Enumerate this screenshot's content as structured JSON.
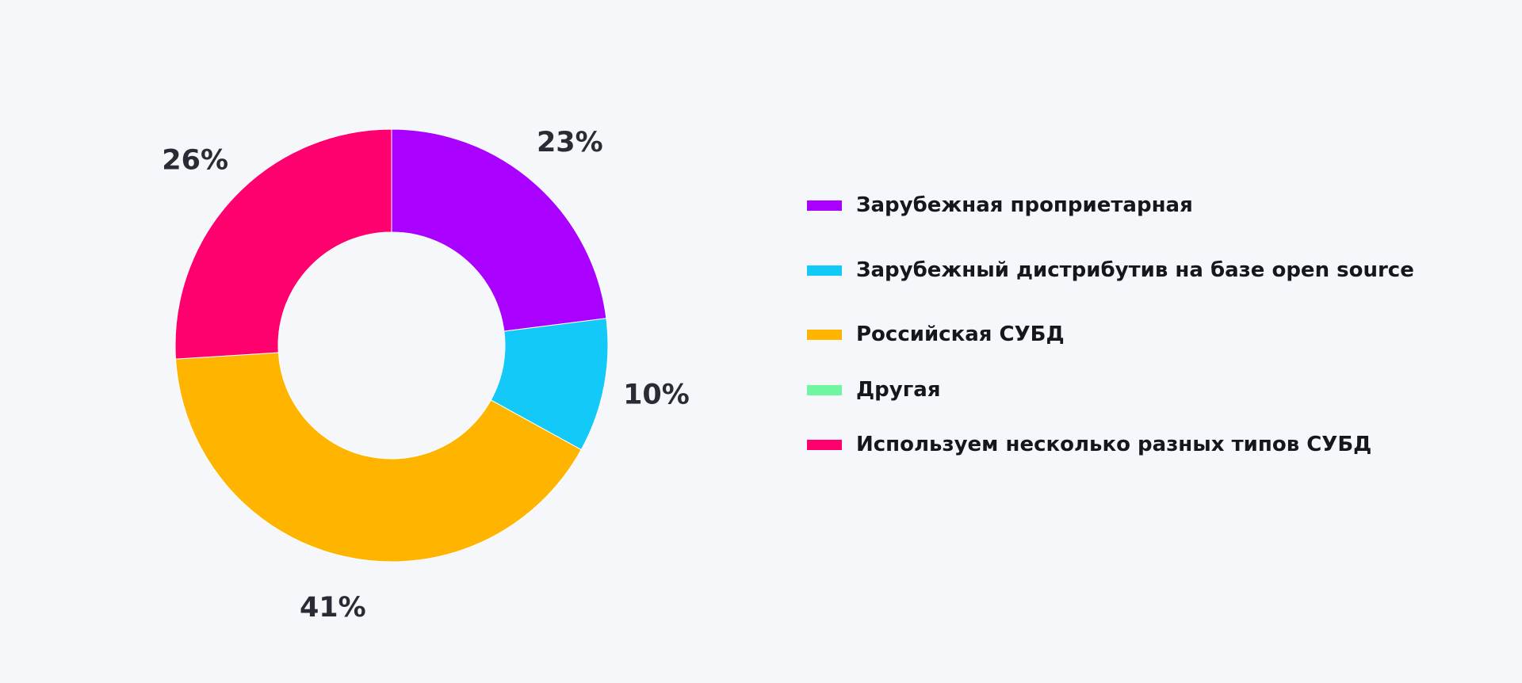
{
  "chart_data": {
    "type": "pie",
    "donut": true,
    "categories": [
      "Зарубежная проприетарная",
      "Зарубежный дистрибутив на базе open source",
      "Российская СУБД",
      "Другая",
      "Используем несколько разных типов СУБД"
    ],
    "values": [
      23,
      10,
      41,
      0,
      26
    ],
    "value_labels": [
      "23%",
      "10%",
      "41%",
      "",
      "26%"
    ],
    "colors": [
      "#aa00ff",
      "#12c9f8",
      "#ffb400",
      "#6ff7a0",
      "#ff006e"
    ],
    "legend_position": "right"
  }
}
